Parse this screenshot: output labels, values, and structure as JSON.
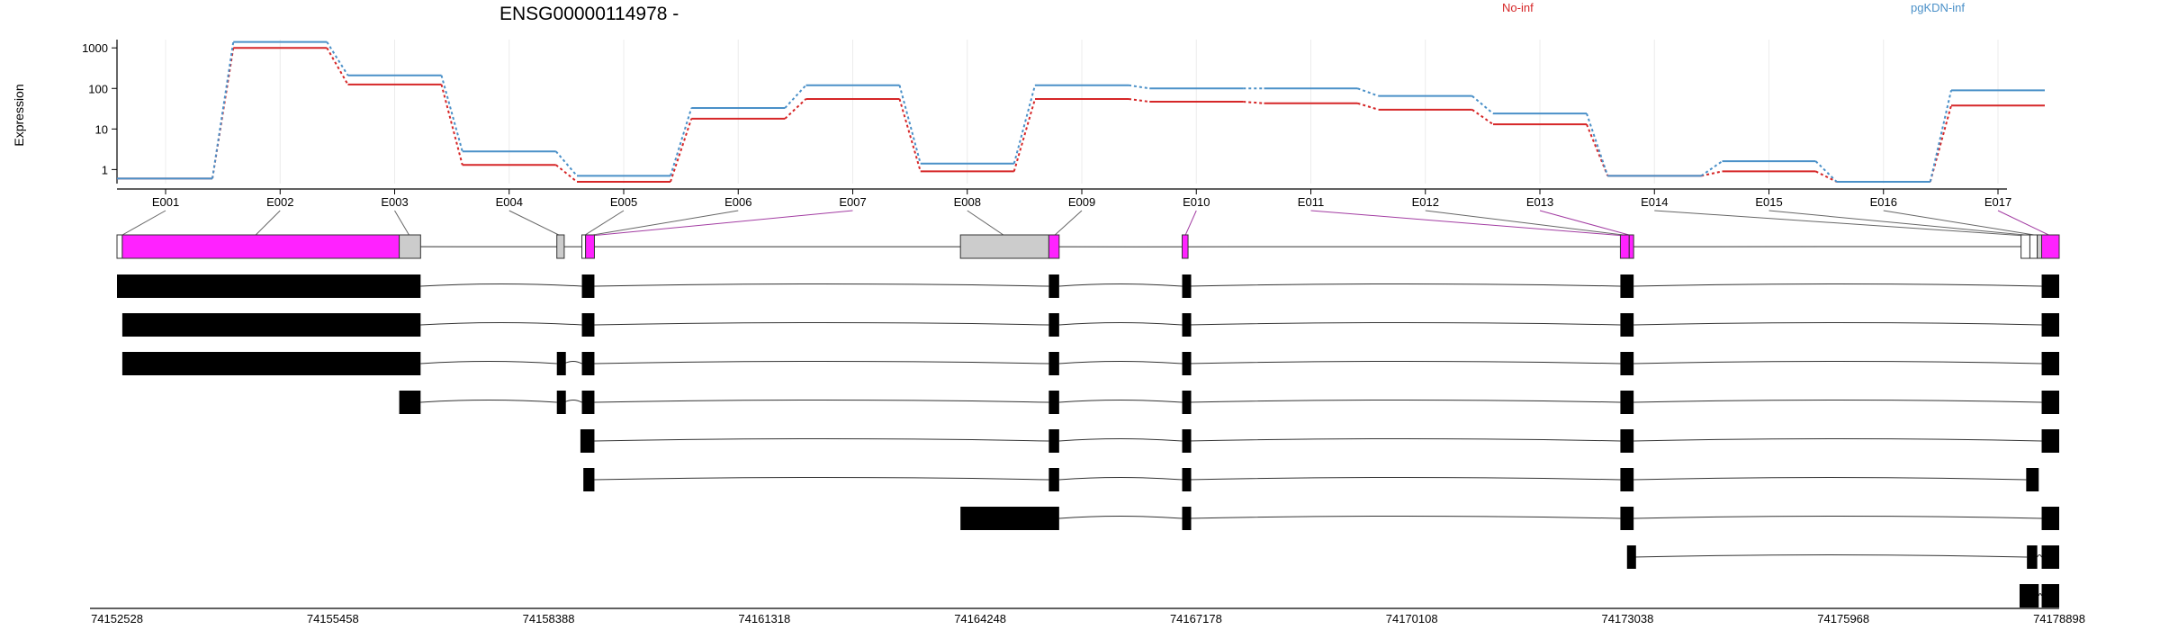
{
  "chart_data": {
    "type": "line",
    "title": "ENSG00000114978 -",
    "ylabel": "Expression",
    "y_scale": "log10",
    "ylim": [
      0.45,
      1600
    ],
    "y_ticks": [
      "1",
      "10",
      "100",
      "1000"
    ],
    "grid": true,
    "legend": {
      "placement": "top-right",
      "orientation": "horizontal"
    },
    "categories": [
      "E001",
      "E002",
      "E003",
      "E004",
      "E005",
      "E006",
      "E007",
      "E008",
      "E009",
      "E010",
      "E011",
      "E012",
      "E013",
      "E014",
      "E015",
      "E016",
      "E017"
    ],
    "series": [
      {
        "name": "No-inf",
        "color": "#d62728",
        "values": [
          0.6,
          1000,
          125,
          1.3,
          0.5,
          18,
          55,
          0.9,
          55,
          47,
          43,
          30,
          13,
          0.7,
          0.9,
          0.5,
          38
        ]
      },
      {
        "name": "pgKDN-inf",
        "color": "#4a90c8",
        "values": [
          0.6,
          1400,
          210,
          2.8,
          0.7,
          33,
          120,
          1.4,
          120,
          100,
          100,
          65,
          24,
          0.7,
          1.6,
          0.5,
          90
        ]
      }
    ],
    "genomic_axis": {
      "start": 74152528,
      "end": 74178898,
      "tick_labels": [
        "74152528",
        "74155458",
        "74158388",
        "74161318",
        "74164248",
        "74167178",
        "74170108",
        "74173038",
        "74175968",
        "74178898"
      ]
    },
    "gene_model": {
      "exons": [
        {
          "start": 74152528,
          "end": 74152600,
          "fill": "#ffffff"
        },
        {
          "start": 74152600,
          "end": 74156360,
          "fill": "#ff22ff",
          "exon_id": "E002"
        },
        {
          "start": 74156360,
          "end": 74156650,
          "fill": "#cccccc",
          "exon_id": "E003"
        },
        {
          "start": 74158500,
          "end": 74158600,
          "fill": "#cccccc",
          "exon_id": "E004"
        },
        {
          "start": 74158840,
          "end": 74158890,
          "fill": "#ffffff",
          "exon_id": "E005"
        },
        {
          "start": 74158890,
          "end": 74159010,
          "fill": "#ff22ff",
          "exon_id": "E007"
        },
        {
          "start": 74163980,
          "end": 74165180,
          "fill": "#cccccc",
          "exon_id": "E008"
        },
        {
          "start": 74165180,
          "end": 74165320,
          "fill": "#ff22ff",
          "exon_id": "E009"
        },
        {
          "start": 74166990,
          "end": 74167070,
          "fill": "#ff22ff",
          "exon_id": "E010"
        },
        {
          "start": 74172940,
          "end": 74173060,
          "fill": "#ff22ff",
          "exon_id": "E011"
        },
        {
          "start": 74173060,
          "end": 74173120,
          "fill": "#ff22ff",
          "exon_id": "E013"
        },
        {
          "start": 74178380,
          "end": 74178500,
          "fill": "#ffffff",
          "exon_id": "E014"
        },
        {
          "start": 74178500,
          "end": 74178600,
          "fill": "#ffffff",
          "exon_id": "E015"
        },
        {
          "start": 74178600,
          "end": 74178660,
          "fill": "#cccccc",
          "exon_id": "E016"
        },
        {
          "start": 74178660,
          "end": 74178898,
          "fill": "#ff22ff",
          "exon_id": "E017"
        }
      ],
      "exon_connectors": [
        {
          "exon_id": "E001",
          "genomic": 74152580,
          "highlight": false
        },
        {
          "exon_id": "E002",
          "genomic": 74154400,
          "highlight": false
        },
        {
          "exon_id": "E003",
          "genomic": 74156500,
          "highlight": false
        },
        {
          "exon_id": "E004",
          "genomic": 74158550,
          "highlight": false
        },
        {
          "exon_id": "E005",
          "genomic": 74158865,
          "highlight": false
        },
        {
          "exon_id": "E006",
          "genomic": 74158920,
          "highlight": false
        },
        {
          "exon_id": "E007",
          "genomic": 74158960,
          "highlight": true
        },
        {
          "exon_id": "E008",
          "genomic": 74164580,
          "highlight": false
        },
        {
          "exon_id": "E009",
          "genomic": 74165250,
          "highlight": false
        },
        {
          "exon_id": "E010",
          "genomic": 74167030,
          "highlight": true
        },
        {
          "exon_id": "E011",
          "genomic": 74173000,
          "highlight": true
        },
        {
          "exon_id": "E012",
          "genomic": 74173070,
          "highlight": false
        },
        {
          "exon_id": "E013",
          "genomic": 74173100,
          "highlight": true
        },
        {
          "exon_id": "E014",
          "genomic": 74178440,
          "highlight": false
        },
        {
          "exon_id": "E015",
          "genomic": 74178550,
          "highlight": false
        },
        {
          "exon_id": "E016",
          "genomic": 74178630,
          "highlight": false
        },
        {
          "exon_id": "E017",
          "genomic": 74178780,
          "highlight": true
        }
      ]
    },
    "transcripts": [
      {
        "exons": [
          [
            74152528,
            74156650
          ],
          [
            74158840,
            74159010
          ],
          [
            74165180,
            74165320
          ],
          [
            74166990,
            74167070
          ],
          [
            74172940,
            74173120
          ],
          [
            74178660,
            74178898
          ]
        ]
      },
      {
        "exons": [
          [
            74152600,
            74156650
          ],
          [
            74158840,
            74159010
          ],
          [
            74165180,
            74165320
          ],
          [
            74166990,
            74167070
          ],
          [
            74172940,
            74173120
          ],
          [
            74178660,
            74178898
          ]
        ]
      },
      {
        "exons": [
          [
            74152600,
            74156650
          ],
          [
            74158500,
            74158600
          ],
          [
            74158840,
            74159010
          ],
          [
            74165180,
            74165320
          ],
          [
            74166990,
            74167070
          ],
          [
            74172940,
            74173120
          ],
          [
            74178660,
            74178898
          ]
        ]
      },
      {
        "exons": [
          [
            74156360,
            74156650
          ],
          [
            74158500,
            74158600
          ],
          [
            74158840,
            74159010
          ],
          [
            74165180,
            74165320
          ],
          [
            74166990,
            74167070
          ],
          [
            74172940,
            74173120
          ],
          [
            74178660,
            74178898
          ]
        ]
      },
      {
        "exons": [
          [
            74158820,
            74159010
          ],
          [
            74165180,
            74165320
          ],
          [
            74166990,
            74167070
          ],
          [
            74172940,
            74173120
          ],
          [
            74178660,
            74178898
          ]
        ]
      },
      {
        "exons": [
          [
            74158860,
            74159010
          ],
          [
            74165180,
            74165320
          ],
          [
            74166990,
            74167070
          ],
          [
            74172940,
            74173120
          ],
          [
            74178450,
            74178620
          ]
        ]
      },
      {
        "exons": [
          [
            74163980,
            74165320
          ],
          [
            74166990,
            74167070
          ],
          [
            74172940,
            74173120
          ],
          [
            74178660,
            74178898
          ]
        ]
      },
      {
        "exons": [
          [
            74173030,
            74173110
          ],
          [
            74178460,
            74178600
          ],
          [
            74178660,
            74178898
          ]
        ]
      },
      {
        "exons": [
          [
            74178360,
            74178620
          ],
          [
            74178660,
            74178898
          ]
        ]
      }
    ]
  }
}
